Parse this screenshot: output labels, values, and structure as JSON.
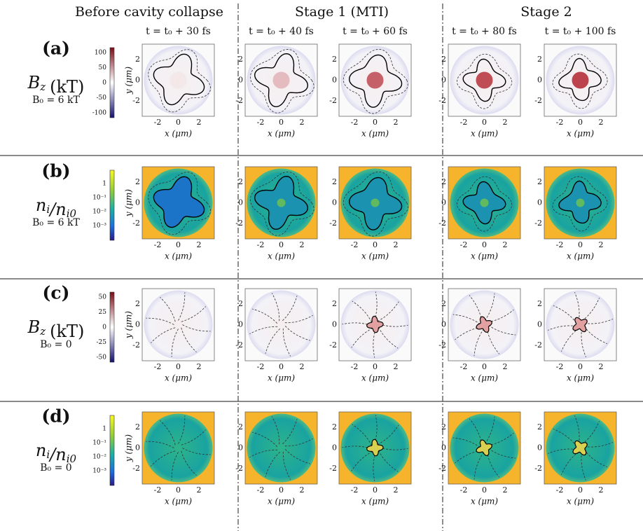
{
  "header": {
    "columns": [
      "Before cavity collapse",
      "Stage 1 (MTI)",
      "Stage 2"
    ],
    "times": [
      "t = t₀ + 30 fs",
      "t = t₀ + 40 fs",
      "t = t₀ + 60 fs",
      "t = t₀ + 80 fs",
      "t = t₀ + 100 fs"
    ]
  },
  "axes": {
    "ticks": [
      "-2",
      "0",
      "2"
    ],
    "x_label": "x (μm)",
    "y_label": "y (μm)"
  },
  "rows": [
    {
      "label": "(a)",
      "quantity": [
        {
          "text": "B",
          "sub": "z"
        }
      ],
      "unit": "(kT)",
      "condition": "B₀ = 6 kT",
      "colorbar": [
        "100",
        "50",
        "0",
        "-50",
        "-100"
      ]
    },
    {
      "label": "(b)",
      "quantity": [
        {
          "text": "n",
          "sub": "i"
        },
        {
          "text": "/n",
          "sub": "i0"
        }
      ],
      "unit": "",
      "condition": "B₀ = 6 kT",
      "colorbar": [
        "1",
        "10⁻¹",
        "10⁻²",
        "10⁻³"
      ]
    },
    {
      "label": "(c)",
      "quantity": [
        {
          "text": "B",
          "sub": "z"
        }
      ],
      "unit": "(kT)",
      "condition": "B₀ = 0",
      "colorbar": [
        "50",
        "25",
        "0",
        "-25",
        "-50"
      ]
    },
    {
      "label": "(d)",
      "quantity": [
        {
          "text": "n",
          "sub": "i"
        },
        {
          "text": "/n",
          "sub": "i0"
        }
      ],
      "unit": "",
      "condition": "B₀ = 0",
      "colorbar": [
        "1",
        "10⁻¹",
        "10⁻²",
        "10⁻³"
      ]
    }
  ]
}
